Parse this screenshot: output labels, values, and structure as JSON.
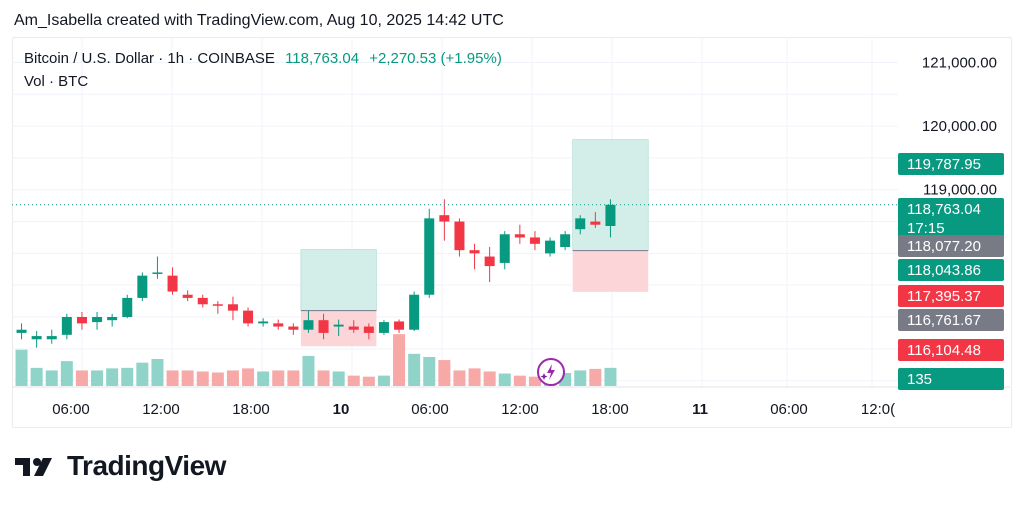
{
  "credit": "Am_Isabella created with TradingView.com, Aug 10, 2025 14:42 UTC",
  "legend": {
    "symbol": "Bitcoin / U.S. Dollar · 1h · COINBASE",
    "price": "118,763.04",
    "change": "+2,270.53 (+1.95%)",
    "volume_label": "Vol · BTC"
  },
  "brand": "TradingView",
  "colors": {
    "up": "#089981",
    "down": "#f23645",
    "vol_up": "#8fd3c9",
    "vol_down": "#f7a9a7",
    "grid": "#f0f3fa",
    "gray_tag": "#787b86",
    "target_fill": "#d3ede9",
    "stop_fill": "#fcd5d8",
    "badge_accent": "#9c27b0"
  },
  "icons": [
    "tradingview-logo-icon",
    "lightning-icon",
    "sparkle-icon"
  ],
  "chart_data": {
    "type": "candlestick",
    "timeframe": "1h",
    "x_tick_labels": [
      "06:00",
      "12:00",
      "18:00",
      "10",
      "06:00",
      "12:00",
      "18:00",
      "11",
      "06:00",
      "12:0("
    ],
    "y_tick_labels": [
      "121,000.00",
      "120,000.00",
      "119,000.00"
    ],
    "ylim": [
      115900,
      121400
    ],
    "price_tags": [
      {
        "label": "119,787.95",
        "sub": "",
        "color": "up"
      },
      {
        "label": "118,763.04",
        "sub": "17:15",
        "color": "up"
      },
      {
        "label": "118,077.20",
        "sub": "",
        "color": "gray_tag"
      },
      {
        "label": "118,043.86",
        "sub": "",
        "color": "up"
      },
      {
        "label": "117,395.37",
        "sub": "",
        "color": "down"
      },
      {
        "label": "116,761.67",
        "sub": "",
        "color": "gray_tag"
      },
      {
        "label": "116,104.48",
        "sub": "",
        "color": "down"
      },
      {
        "label": "135",
        "sub": "",
        "color": "up"
      }
    ],
    "candles": [
      {
        "o": 116750,
        "h": 116900,
        "l": 116650,
        "c": 116800
      },
      {
        "o": 116650,
        "h": 116780,
        "l": 116520,
        "c": 116700
      },
      {
        "o": 116650,
        "h": 116800,
        "l": 116580,
        "c": 116700
      },
      {
        "o": 116720,
        "h": 117050,
        "l": 116650,
        "c": 117000
      },
      {
        "o": 117000,
        "h": 117080,
        "l": 116800,
        "c": 116900
      },
      {
        "o": 116920,
        "h": 117080,
        "l": 116800,
        "c": 117000
      },
      {
        "o": 116950,
        "h": 117050,
        "l": 116850,
        "c": 117000
      },
      {
        "o": 117000,
        "h": 117350,
        "l": 116980,
        "c": 117300
      },
      {
        "o": 117300,
        "h": 117700,
        "l": 117250,
        "c": 117650
      },
      {
        "o": 117680,
        "h": 117950,
        "l": 117600,
        "c": 117700
      },
      {
        "o": 117650,
        "h": 117780,
        "l": 117350,
        "c": 117400
      },
      {
        "o": 117350,
        "h": 117420,
        "l": 117250,
        "c": 117300
      },
      {
        "o": 117300,
        "h": 117350,
        "l": 117150,
        "c": 117200
      },
      {
        "o": 117200,
        "h": 117250,
        "l": 117050,
        "c": 117180
      },
      {
        "o": 117200,
        "h": 117320,
        "l": 116950,
        "c": 117100
      },
      {
        "o": 117100,
        "h": 117150,
        "l": 116850,
        "c": 116900
      },
      {
        "o": 116900,
        "h": 116980,
        "l": 116850,
        "c": 116930
      },
      {
        "o": 116900,
        "h": 116960,
        "l": 116800,
        "c": 116850
      },
      {
        "o": 116850,
        "h": 116900,
        "l": 116720,
        "c": 116800
      },
      {
        "o": 116800,
        "h": 117100,
        "l": 116750,
        "c": 116950
      },
      {
        "o": 116950,
        "h": 117050,
        "l": 116650,
        "c": 116750
      },
      {
        "o": 116850,
        "h": 116960,
        "l": 116700,
        "c": 116880
      },
      {
        "o": 116850,
        "h": 116950,
        "l": 116750,
        "c": 116800
      },
      {
        "o": 116850,
        "h": 116900,
        "l": 116650,
        "c": 116750
      },
      {
        "o": 116750,
        "h": 116950,
        "l": 116720,
        "c": 116920
      },
      {
        "o": 116930,
        "h": 116960,
        "l": 116750,
        "c": 116800
      },
      {
        "o": 116800,
        "h": 117400,
        "l": 116780,
        "c": 117350
      },
      {
        "o": 117350,
        "h": 118700,
        "l": 117300,
        "c": 118550
      },
      {
        "o": 118600,
        "h": 118850,
        "l": 118200,
        "c": 118500
      },
      {
        "o": 118500,
        "h": 118550,
        "l": 117950,
        "c": 118050
      },
      {
        "o": 118050,
        "h": 118150,
        "l": 117750,
        "c": 118000
      },
      {
        "o": 117950,
        "h": 118100,
        "l": 117550,
        "c": 117800
      },
      {
        "o": 117850,
        "h": 118350,
        "l": 117750,
        "c": 118300
      },
      {
        "o": 118300,
        "h": 118450,
        "l": 118150,
        "c": 118250
      },
      {
        "o": 118250,
        "h": 118350,
        "l": 118050,
        "c": 118150
      },
      {
        "o": 118000,
        "h": 118250,
        "l": 117950,
        "c": 118200
      },
      {
        "o": 118100,
        "h": 118350,
        "l": 118050,
        "c": 118300
      },
      {
        "o": 118380,
        "h": 118600,
        "l": 118300,
        "c": 118550
      },
      {
        "o": 118500,
        "h": 118650,
        "l": 118400,
        "c": 118450
      },
      {
        "o": 118430,
        "h": 118850,
        "l": 118250,
        "c": 118763.04
      }
    ],
    "volume": [
      70,
      35,
      30,
      48,
      30,
      30,
      34,
      35,
      45,
      52,
      30,
      30,
      28,
      26,
      30,
      34,
      28,
      30,
      30,
      58,
      30,
      28,
      20,
      18,
      20,
      100,
      62,
      56,
      50,
      30,
      34,
      28,
      24,
      20,
      18,
      18,
      25,
      30,
      33,
      35
    ],
    "volume_max": 135,
    "positions": [
      {
        "from_index": 19,
        "to_index": 24,
        "entry": 117100,
        "target": 118060,
        "stop": 116540
      },
      {
        "from_index": 37,
        "to_index": 42,
        "entry": 118043.86,
        "target": 119787.95,
        "stop": 117395.37
      }
    ]
  }
}
